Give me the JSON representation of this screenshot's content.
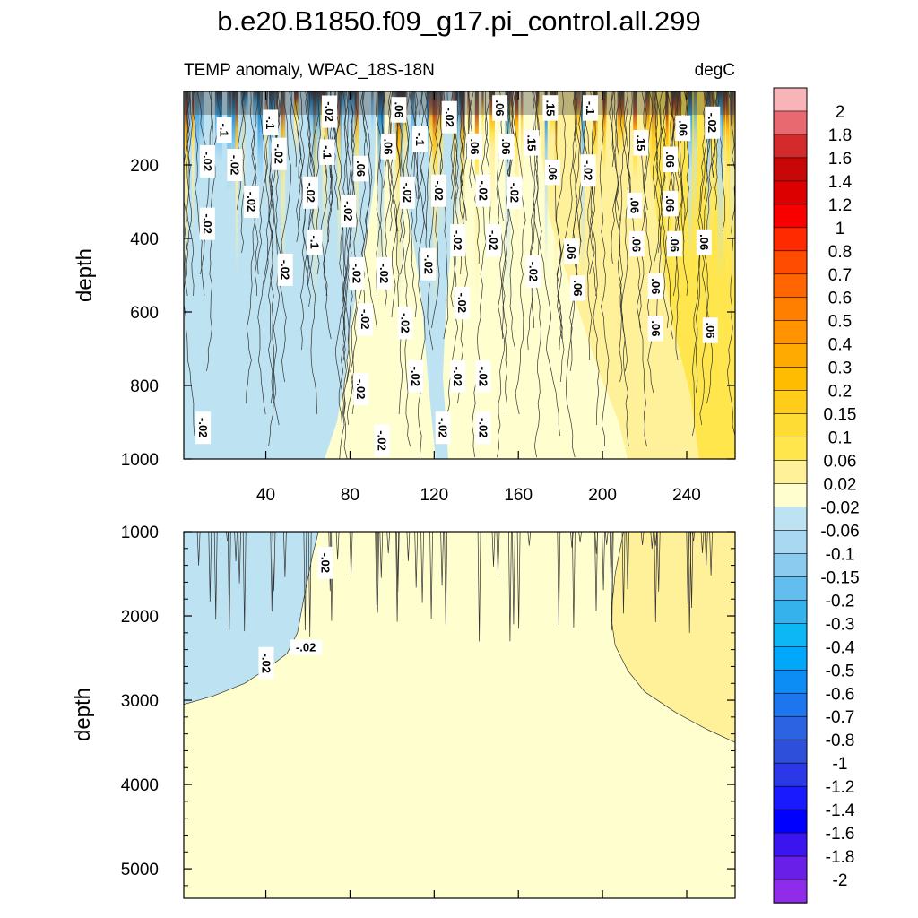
{
  "chart_data": [
    {
      "type": "contour",
      "panel": "upper",
      "title": "b.e20.B1850.f09_g17.pi_control.all.299",
      "subtitle_left": "TEMP anomaly, WPAC_18S-18N",
      "subtitle_right": "degC",
      "ylabel": "depth",
      "xlim": [
        1,
        263
      ],
      "ylim": [
        0,
        1000
      ],
      "x_ticks": [
        40,
        80,
        120,
        160,
        200,
        240
      ],
      "y_ticks": [
        200,
        400,
        600,
        800,
        1000
      ],
      "contour_labels": [
        {
          "text": "-.1",
          "x": 20,
          "y": 105
        },
        {
          "text": "-.1",
          "x": 42,
          "y": 85
        },
        {
          "text": "-.02",
          "x": 70,
          "y": 55
        },
        {
          "text": ".06",
          "x": 103,
          "y": 50
        },
        {
          "text": "-.02",
          "x": 127,
          "y": 70
        },
        {
          "text": ".06",
          "x": 151,
          "y": 45
        },
        {
          "text": ".15",
          "x": 175,
          "y": 45
        },
        {
          "text": "-.1",
          "x": 194,
          "y": 45
        },
        {
          "text": ".06",
          "x": 238,
          "y": 100
        },
        {
          "text": "-.02",
          "x": 252,
          "y": 85
        },
        {
          "text": "-.02",
          "x": 12,
          "y": 190
        },
        {
          "text": "-.02",
          "x": 25,
          "y": 200
        },
        {
          "text": "-.02",
          "x": 46,
          "y": 170
        },
        {
          "text": "-.1",
          "x": 69,
          "y": 165
        },
        {
          "text": ".06",
          "x": 98,
          "y": 150
        },
        {
          "text": "-.1",
          "x": 113,
          "y": 130
        },
        {
          "text": ".06",
          "x": 139,
          "y": 150
        },
        {
          "text": ".06",
          "x": 154,
          "y": 150
        },
        {
          "text": ".15",
          "x": 166,
          "y": 140
        },
        {
          "text": ".15",
          "x": 218,
          "y": 140
        },
        {
          "text": ".06",
          "x": 232,
          "y": 185
        },
        {
          "text": "-.02",
          "x": 193,
          "y": 215
        },
        {
          "text": ".06",
          "x": 85,
          "y": 210
        },
        {
          "text": ".06",
          "x": 176,
          "y": 220
        },
        {
          "text": "-.02",
          "x": 107,
          "y": 275
        },
        {
          "text": "-.02",
          "x": 122,
          "y": 270
        },
        {
          "text": "-.02",
          "x": 143,
          "y": 270
        },
        {
          "text": "-.02",
          "x": 158,
          "y": 275
        },
        {
          "text": "-.02",
          "x": 61,
          "y": 275
        },
        {
          "text": "-.02",
          "x": 33,
          "y": 300
        },
        {
          "text": "-.02",
          "x": 79,
          "y": 325
        },
        {
          "text": ".06",
          "x": 215,
          "y": 310
        },
        {
          "text": ".06",
          "x": 232,
          "y": 305
        },
        {
          "text": "-.02",
          "x": 12,
          "y": 360
        },
        {
          "text": "-.1",
          "x": 63,
          "y": 410
        },
        {
          "text": "-.02",
          "x": 131,
          "y": 405
        },
        {
          "text": "-.02",
          "x": 148,
          "y": 405
        },
        {
          "text": ".06",
          "x": 185,
          "y": 435
        },
        {
          "text": ".06",
          "x": 216,
          "y": 415
        },
        {
          "text": ".06",
          "x": 234,
          "y": 415
        },
        {
          "text": ".06",
          "x": 248,
          "y": 410
        },
        {
          "text": "-.02",
          "x": 49,
          "y": 485
        },
        {
          "text": "-.02",
          "x": 83,
          "y": 495
        },
        {
          "text": "-.02",
          "x": 96,
          "y": 495
        },
        {
          "text": "-.02",
          "x": 117,
          "y": 470
        },
        {
          "text": "-.02",
          "x": 167,
          "y": 490
        },
        {
          "text": ".06",
          "x": 188,
          "y": 535
        },
        {
          "text": ".06",
          "x": 225,
          "y": 530
        },
        {
          "text": "-.02",
          "x": 133,
          "y": 575
        },
        {
          "text": "-.02",
          "x": 87,
          "y": 620
        },
        {
          "text": "-.02",
          "x": 106,
          "y": 630
        },
        {
          "text": ".06",
          "x": 225,
          "y": 645
        },
        {
          "text": ".06",
          "x": 251,
          "y": 650
        },
        {
          "text": "-.02",
          "x": 111,
          "y": 775
        },
        {
          "text": "-.02",
          "x": 131,
          "y": 775
        },
        {
          "text": "-.02",
          "x": 143,
          "y": 775
        },
        {
          "text": "-.02",
          "x": 85,
          "y": 810
        },
        {
          "text": "-.02",
          "x": 10,
          "y": 915
        },
        {
          "text": "-.02",
          "x": 124,
          "y": 915
        },
        {
          "text": "-.02",
          "x": 143,
          "y": 915
        },
        {
          "text": "-.02",
          "x": 95,
          "y": 950
        }
      ]
    },
    {
      "type": "contour",
      "panel": "lower",
      "ylabel": "depth",
      "xlim": [
        1,
        263
      ],
      "ylim": [
        1000,
        5350
      ],
      "y_ticks": [
        1000,
        2000,
        3000,
        4000,
        5000
      ],
      "contour_labels": [
        {
          "text": "-.02",
          "x": 68,
          "y": 1370
        },
        {
          "text": "-.02",
          "x": 59,
          "y": 2375
        },
        {
          "text": "-.02",
          "x": 40,
          "y": 2560
        }
      ]
    }
  ],
  "colorbar": {
    "levels": [
      "2",
      "1.8",
      "1.6",
      "1.4",
      "1.2",
      "1",
      "0.8",
      "0.7",
      "0.6",
      "0.5",
      "0.4",
      "0.3",
      "0.2",
      "0.15",
      "0.1",
      "0.06",
      "0.02",
      "-0.02",
      "-0.06",
      "-0.1",
      "-0.15",
      "-0.2",
      "-0.3",
      "-0.4",
      "-0.5",
      "-0.6",
      "-0.7",
      "-0.8",
      "-1",
      "-1.2",
      "-1.4",
      "-1.6",
      "-1.8",
      "-2"
    ],
    "colors": [
      "#f7b5b9",
      "#e8696f",
      "#d32b2b",
      "#c80808",
      "#dd0000",
      "#f70000",
      "#ff2a00",
      "#ff4c00",
      "#ff6600",
      "#ff7f00",
      "#ff9400",
      "#ffaa00",
      "#ffbc00",
      "#ffcc1a",
      "#ffdc33",
      "#ffe64d",
      "#fff09a",
      "#fffecf",
      "#bde2f2",
      "#a8d8f2",
      "#8ccbf0",
      "#63bdee",
      "#35b1ec",
      "#0db6f5",
      "#00a7fb",
      "#0c8cf5",
      "#1e76ef",
      "#2b63e3",
      "#2e4fd9",
      "#2a38e8",
      "#1a1aff",
      "#0000ff",
      "#3a15f0",
      "#6a1fe8",
      "#8f2cea"
    ]
  }
}
